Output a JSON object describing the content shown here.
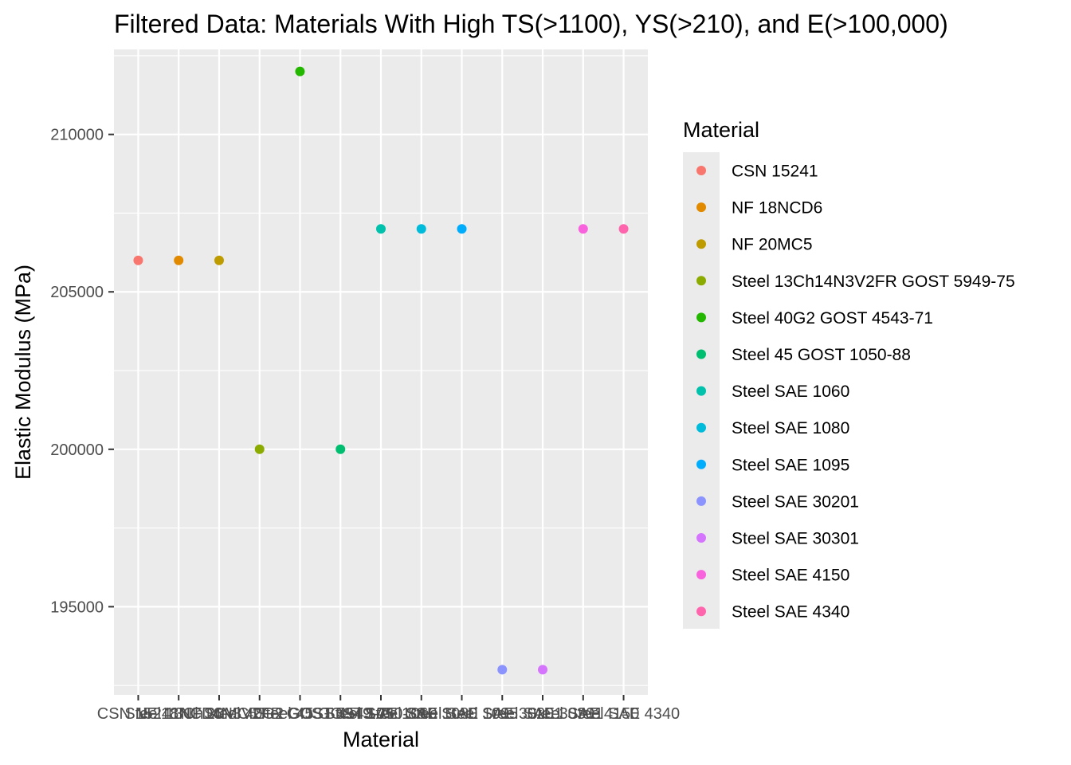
{
  "chart_data": {
    "type": "scatter",
    "title": "Filtered Data: Materials With High TS(>1100), YS(>210), and E(>100,000)",
    "xlabel": "Material",
    "ylabel": "Elastic Modulus (MPa)",
    "ylim": [
      192200,
      212700
    ],
    "yticks": [
      195000,
      200000,
      205000,
      210000
    ],
    "ytick_labels": [
      "195000",
      "200000",
      "205000",
      "210000"
    ],
    "grid": true,
    "legend_title": "Material",
    "legend_position": "right",
    "categories": [
      "CSN 15241",
      "NF 18NCD6",
      "NF 20MC5",
      "Steel 13Ch14N3V2FR GOST 5949-75",
      "Steel 40G2 GOST 4543-71",
      "Steel 45 GOST 1050-88",
      "Steel SAE 1060",
      "Steel SAE 1080",
      "Steel SAE 1095",
      "Steel SAE 30201",
      "Steel SAE 30301",
      "Steel SAE 4150",
      "Steel SAE 4340"
    ],
    "values": [
      206000,
      206000,
      206000,
      200000,
      212000,
      200000,
      207000,
      207000,
      207000,
      193000,
      193000,
      207000,
      207000
    ],
    "colors": [
      "#F8766D",
      "#E18A00",
      "#BE9C00",
      "#8CAB00",
      "#24B700",
      "#00BE70",
      "#00C1AB",
      "#00BBDA",
      "#00ACFC",
      "#8B93FF",
      "#D575FE",
      "#F962DD",
      "#FF65AC"
    ]
  }
}
